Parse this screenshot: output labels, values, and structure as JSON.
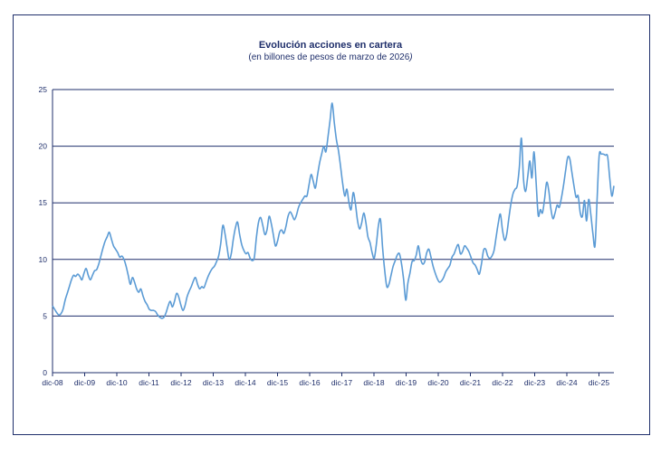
{
  "chart_data": {
    "type": "line",
    "title": "Evolución acciones en cartera",
    "subtitle_text": "(en billones de pesos de marzo de 2026",
    "subtitle_close": ")",
    "xlabel": "",
    "ylabel": "",
    "ylim": [
      0,
      25
    ],
    "yticks": [
      0,
      5,
      10,
      15,
      20,
      25
    ],
    "grid": "horizontal",
    "legend": "none",
    "line_color": "#5b9bd5",
    "axis_color": "#1f2f6b",
    "x_start": "dic-08",
    "x_frequency": "monthly",
    "x_tick_labels": [
      "dic-08",
      "dic-09",
      "dic-10",
      "dic-11",
      "dic-12",
      "dic-13",
      "dic-14",
      "dic-15",
      "dic-16",
      "dic-17",
      "dic-18",
      "dic-19",
      "dic-20",
      "dic-21",
      "dic-22",
      "dic-23",
      "dic-24",
      "dic-25"
    ],
    "series": [
      {
        "values": [
          5.9,
          5.6,
          5.3,
          5.1,
          5.2,
          5.6,
          6.4,
          7.0,
          7.6,
          8.2,
          8.6,
          8.5,
          8.7,
          8.5,
          8.2,
          8.8,
          9.2,
          8.6,
          8.2,
          8.6,
          9.0,
          9.1,
          9.6,
          10.3,
          11.0,
          11.6,
          12.0,
          12.4,
          11.8,
          11.2,
          10.9,
          10.6,
          10.2,
          10.3,
          10.0,
          9.4,
          8.6,
          7.8,
          8.4,
          8.0,
          7.4,
          7.1,
          7.4,
          6.8,
          6.3,
          6.0,
          5.6,
          5.5,
          5.5,
          5.4,
          5.1,
          4.9,
          4.8,
          4.9,
          5.3,
          5.9,
          6.3,
          5.8,
          6.3,
          7.0,
          6.7,
          6.0,
          5.5,
          5.9,
          6.7,
          7.2,
          7.6,
          8.1,
          8.4,
          7.8,
          7.4,
          7.6,
          7.5,
          8.0,
          8.5,
          8.9,
          9.2,
          9.4,
          9.8,
          10.3,
          11.4,
          13.0,
          12.3,
          11.1,
          10.0,
          10.5,
          11.8,
          12.8,
          13.3,
          12.2,
          11.3,
          10.8,
          10.5,
          10.6,
          10.1,
          9.9,
          10.2,
          12.0,
          13.3,
          13.7,
          13.0,
          12.2,
          12.6,
          13.8,
          13.2,
          12.2,
          11.2,
          11.6,
          12.4,
          12.6,
          12.3,
          12.9,
          13.8,
          14.2,
          13.9,
          13.5,
          13.9,
          14.6,
          15.0,
          15.3,
          15.6,
          15.6,
          16.6,
          17.5,
          16.9,
          16.3,
          17.4,
          18.5,
          19.3,
          20.0,
          19.5,
          20.8,
          22.3,
          23.8,
          22.1,
          20.6,
          19.6,
          18.2,
          16.7,
          15.6,
          16.2,
          15.0,
          14.4,
          15.9,
          15.0,
          13.5,
          12.7,
          13.2,
          14.1,
          13.3,
          12.0,
          11.5,
          10.6,
          10.1,
          11.3,
          13.0,
          13.5,
          11.0,
          9.0,
          7.6,
          7.8,
          8.6,
          9.4,
          9.9,
          10.4,
          10.5,
          9.6,
          8.2,
          6.4,
          7.9,
          8.8,
          9.8,
          9.9,
          10.4,
          11.2,
          10.1,
          9.6,
          9.8,
          10.6,
          10.9,
          10.2,
          9.4,
          8.8,
          8.3,
          8.0,
          8.1,
          8.4,
          8.9,
          9.2,
          9.5,
          10.2,
          10.5,
          11.0,
          11.3,
          10.5,
          10.7,
          11.2,
          11.0,
          10.7,
          10.2,
          9.7,
          9.5,
          9.1,
          8.7,
          9.6,
          10.8,
          10.9,
          10.3,
          10.1,
          10.3,
          10.8,
          12.0,
          13.2,
          14.0,
          12.6,
          11.7,
          12.2,
          13.6,
          14.9,
          15.8,
          16.2,
          16.5,
          18.1,
          20.7,
          17.1,
          16.0,
          17.3,
          18.7,
          17.2,
          19.5,
          16.8,
          13.9,
          14.4,
          14.1,
          15.3,
          16.8,
          16.1,
          14.5,
          13.6,
          14.1,
          14.8,
          14.6,
          15.4,
          16.5,
          17.8,
          19.0,
          18.9,
          17.7,
          16.5,
          15.5,
          15.6,
          14.1,
          13.8,
          15.2,
          13.4,
          15.3,
          14.0,
          12.3,
          11.2,
          15.3,
          19.2,
          19.3,
          19.3,
          19.2,
          19.1,
          17.2,
          15.6,
          16.5
        ]
      }
    ]
  }
}
